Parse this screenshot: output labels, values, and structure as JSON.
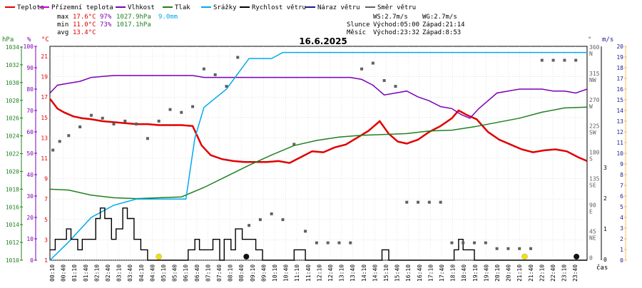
{
  "legend": [
    {
      "label": "Teplota",
      "color": "#e00000"
    },
    {
      "label": "Přízemní teplota",
      "color": "#cc00cc"
    },
    {
      "label": "Vlhkost",
      "color": "#7b00b4"
    },
    {
      "label": "Tlak",
      "color": "#208020"
    },
    {
      "label": "Srážky",
      "color": "#00aaee"
    },
    {
      "label": "Rychlost větru",
      "color": "#000000"
    },
    {
      "label": "Náraz větru",
      "color": "#1a1a90"
    },
    {
      "label": "Směr větru",
      "color": "#606060"
    }
  ],
  "stats": {
    "max": {
      "label": "max",
      "temp": "17.6°C",
      "hum": "97%",
      "press": "1027.9hPa",
      "rain": "9.0mm"
    },
    "min": {
      "label": "min",
      "temp": "11.0°C",
      "hum": "73%",
      "press": "1017.1hPa"
    },
    "avg": {
      "label": "avg",
      "temp": "13.4°C"
    }
  },
  "wind_info": {
    "ws": "WS:2.7m/s",
    "wg": "WG:2.7m/s"
  },
  "astro": {
    "sun_label": "Slunce",
    "sunrise": "Východ:05:00",
    "sunset": "Západ:21:14",
    "moon_label": "Měsíc",
    "moonrise": "Východ:23:32",
    "moonset": "Západ:8:53"
  },
  "date": "16.6.2025",
  "axes": {
    "hpa_unit": "hPa",
    "pct_unit": "%",
    "c_unit": "°C",
    "deg_unit": "°",
    "ms_unit": "m/s",
    "time_label": "čas",
    "hpa_ticks": [
      "1034",
      "1032",
      "1030",
      "1028",
      "1026",
      "1024",
      "1022",
      "1020",
      "1018",
      "1016",
      "1014",
      "1012",
      "1010"
    ],
    "pct_ticks": [
      "100",
      "90",
      "80",
      "70",
      "60",
      "50",
      "40",
      "30",
      "20",
      "10",
      "0"
    ],
    "c_ticks": [
      "21",
      "19",
      "17",
      "15",
      "13",
      "11",
      "9",
      "7",
      "5",
      "3",
      "1"
    ],
    "mm_ticks": [
      "3",
      "2",
      "1",
      "0"
    ],
    "dir_ticks": [
      {
        "deg": "360",
        "lab": "N"
      },
      {
        "deg": "315",
        "lab": "NW"
      },
      {
        "deg": "270",
        "lab": "W"
      },
      {
        "deg": "225",
        "lab": "SW"
      },
      {
        "deg": "180",
        "lab": "S"
      },
      {
        "deg": "135",
        "lab": "SE"
      },
      {
        "deg": "90",
        "lab": "E"
      },
      {
        "deg": "45",
        "lab": "NE"
      },
      {
        "deg": "0",
        "lab": ""
      }
    ],
    "ms_ticks": [
      "20",
      "19",
      "18",
      "17",
      "16",
      "15",
      "14",
      "13",
      "12",
      "11",
      "10",
      "9",
      "8",
      "7",
      "6",
      "5",
      "4",
      "3",
      "2",
      "1",
      "0"
    ],
    "time_ticks": [
      "00:10",
      "00:40",
      "01:10",
      "01:40",
      "02:10",
      "02:40",
      "03:10",
      "03:40",
      "04:10",
      "04:40",
      "05:10",
      "05:40",
      "06:10",
      "06:40",
      "07:10",
      "07:40",
      "08:10",
      "08:40",
      "09:10",
      "09:40",
      "10:10",
      "10:40",
      "11:10",
      "11:40",
      "12:10",
      "12:40",
      "13:10",
      "13:40",
      "14:10",
      "14:40",
      "15:10",
      "15:40",
      "16:10",
      "16:40",
      "17:10",
      "17:40",
      "18:10",
      "18:40",
      "19:10",
      "19:40",
      "20:10",
      "20:40",
      "21:10",
      "21:40",
      "22:10",
      "22:40",
      "23:10",
      "23:40"
    ]
  },
  "chart_data": {
    "type": "line",
    "title": "16.6.2025",
    "xlim_hours": [
      0.167,
      24.0
    ],
    "series": [
      {
        "name": "Teplota",
        "unit": "°C",
        "color": "#e00000",
        "x": [
          0.17,
          0.5,
          0.8,
          1.2,
          1.6,
          2.0,
          2.5,
          3.0,
          3.5,
          4.0,
          4.5,
          5.0,
          5.5,
          6.0,
          6.5,
          6.9,
          7.3,
          7.8,
          8.3,
          8.8,
          9.3,
          9.8,
          10.3,
          10.8,
          11.3,
          11.8,
          12.3,
          12.8,
          13.3,
          13.8,
          14.3,
          14.8,
          15.2,
          15.6,
          16.0,
          16.5,
          17.0,
          17.5,
          18.0,
          18.3,
          18.7,
          19.1,
          19.6,
          20.1,
          20.6,
          21.1,
          21.6,
          22.1,
          22.6,
          23.1,
          23.6,
          24.0
        ],
        "y": [
          17.6,
          16.6,
          16.2,
          15.8,
          15.6,
          15.5,
          15.3,
          15.2,
          15.1,
          15.0,
          15.0,
          14.9,
          14.9,
          14.9,
          14.8,
          12.8,
          11.8,
          11.4,
          11.2,
          11.1,
          11.1,
          11.1,
          11.2,
          11.0,
          11.6,
          12.2,
          12.1,
          12.6,
          12.9,
          13.6,
          14.3,
          15.3,
          14.0,
          13.2,
          13.0,
          13.4,
          14.2,
          14.8,
          15.6,
          16.4,
          15.9,
          15.5,
          14.2,
          13.4,
          12.9,
          12.4,
          12.1,
          12.3,
          12.4,
          12.2,
          11.6,
          11.2
        ]
      },
      {
        "name": "Vlhkost",
        "unit": "%",
        "color": "#7b00b4",
        "x": [
          0.17,
          0.5,
          1.0,
          1.5,
          2.0,
          3.0,
          4.0,
          5.0,
          6.0,
          6.5,
          7.0,
          8.0,
          9.0,
          10.0,
          11.0,
          12.0,
          13.0,
          13.5,
          14.0,
          14.5,
          15.0,
          15.5,
          16.0,
          16.5,
          17.0,
          17.5,
          18.0,
          18.4,
          18.8,
          19.2,
          19.6,
          20.0,
          20.5,
          21.0,
          21.5,
          22.0,
          22.5,
          23.0,
          23.5,
          24.0
        ],
        "y": [
          86,
          90,
          91,
          92,
          94,
          95,
          95,
          95,
          95,
          95,
          94,
          94,
          94,
          94,
          94,
          94,
          94,
          94,
          93,
          90,
          85,
          86,
          87,
          84,
          82,
          79,
          78,
          75,
          73,
          78,
          82,
          86,
          87,
          88,
          88,
          88,
          87,
          87,
          86,
          88
        ]
      },
      {
        "name": "Tlak",
        "unit": "hPa",
        "color": "#208020",
        "x": [
          0.17,
          1.0,
          2.0,
          3.0,
          4.0,
          5.0,
          6.0,
          7.0,
          8.0,
          9.0,
          10.0,
          11.0,
          12.0,
          13.0,
          14.0,
          15.0,
          16.0,
          17.0,
          18.0,
          19.0,
          20.0,
          21.0,
          22.0,
          23.0,
          24.0
        ],
        "y": [
          1018.3,
          1018.2,
          1017.6,
          1017.3,
          1017.2,
          1017.3,
          1017.4,
          1018.5,
          1019.8,
          1021.1,
          1022.3,
          1023.4,
          1024.0,
          1024.4,
          1024.6,
          1024.7,
          1024.8,
          1025.1,
          1025.2,
          1025.6,
          1026.1,
          1026.6,
          1027.3,
          1027.8,
          1027.9
        ]
      },
      {
        "name": "Srážky",
        "unit": "mm",
        "color": "#00aaee",
        "x": [
          0.17,
          1.0,
          2.0,
          3.0,
          4.0,
          5.0,
          6.2,
          6.6,
          7.0,
          8.0,
          9.0,
          10.0,
          10.5,
          11.0,
          12.0,
          24.0
        ],
        "y": [
          0.0,
          0.3,
          0.7,
          0.9,
          1.0,
          1.0,
          1.0,
          2.0,
          2.5,
          2.8,
          3.3,
          3.3,
          3.4,
          3.4,
          3.4,
          3.4
        ]
      },
      {
        "name": "Rychlost větru",
        "unit": "m/s",
        "color": "#000000",
        "x": [
          0.17,
          0.4,
          0.6,
          0.9,
          1.1,
          1.4,
          1.6,
          1.9,
          2.2,
          2.4,
          2.6,
          2.9,
          3.1,
          3.4,
          3.6,
          3.9,
          4.2,
          4.5,
          4.7,
          5.0,
          5.2,
          5.5,
          5.8,
          6.0,
          6.3,
          6.6,
          6.8,
          7.1,
          7.4,
          7.7,
          7.9,
          8.2,
          8.4,
          8.7,
          9.0,
          9.3,
          9.6,
          10.0,
          10.5,
          11.0,
          11.5,
          12.0,
          13.0,
          14.0,
          14.6,
          14.9,
          15.2,
          16.0,
          17.0,
          18.0,
          18.1,
          18.3,
          18.5,
          19.0,
          20.0,
          21.0,
          22.0,
          23.0,
          23.7,
          24.0
        ],
        "y": [
          1,
          2,
          2,
          3,
          2,
          1,
          2,
          2,
          4,
          5,
          4,
          2,
          3,
          5,
          4,
          2,
          1,
          0,
          0,
          0,
          0,
          0,
          0,
          0,
          1,
          2,
          1,
          1,
          2,
          0,
          2,
          1,
          3,
          2,
          2,
          1,
          0,
          0,
          0,
          1,
          0,
          0,
          0,
          0,
          0,
          1,
          0,
          0,
          0,
          0,
          1,
          2,
          1,
          0,
          0,
          0,
          0,
          0,
          0,
          0
        ]
      },
      {
        "name": "Směr větru",
        "unit": "°",
        "color": "#606060",
        "x": [
          0.3,
          0.6,
          1.0,
          1.5,
          2.0,
          2.5,
          3.0,
          3.5,
          4.0,
          4.5,
          5.0,
          5.5,
          6.0,
          6.5,
          7.0,
          7.5,
          8.0,
          8.5,
          9.0,
          9.5,
          10.0,
          10.5,
          11.0,
          11.5,
          12.0,
          12.5,
          13.0,
          13.5,
          14.0,
          14.5,
          15.0,
          15.5,
          16.0,
          16.5,
          17.0,
          17.5,
          18.0,
          18.5,
          19.0,
          19.5,
          20.0,
          20.5,
          21.0,
          21.5,
          22.0,
          22.5,
          23.0,
          23.5
        ],
        "y": [
          190,
          205,
          215,
          230,
          250,
          245,
          235,
          240,
          235,
          210,
          240,
          260,
          255,
          265,
          330,
          320,
          300,
          350,
          60,
          70,
          80,
          70,
          200,
          50,
          30,
          30,
          30,
          30,
          330,
          340,
          310,
          300,
          100,
          100,
          100,
          100,
          30,
          30,
          30,
          30,
          20,
          20,
          20,
          20,
          345,
          345,
          345,
          345
        ]
      }
    ]
  },
  "markers": {
    "sun_color": "#f5e000",
    "moon_color": "#111111"
  }
}
